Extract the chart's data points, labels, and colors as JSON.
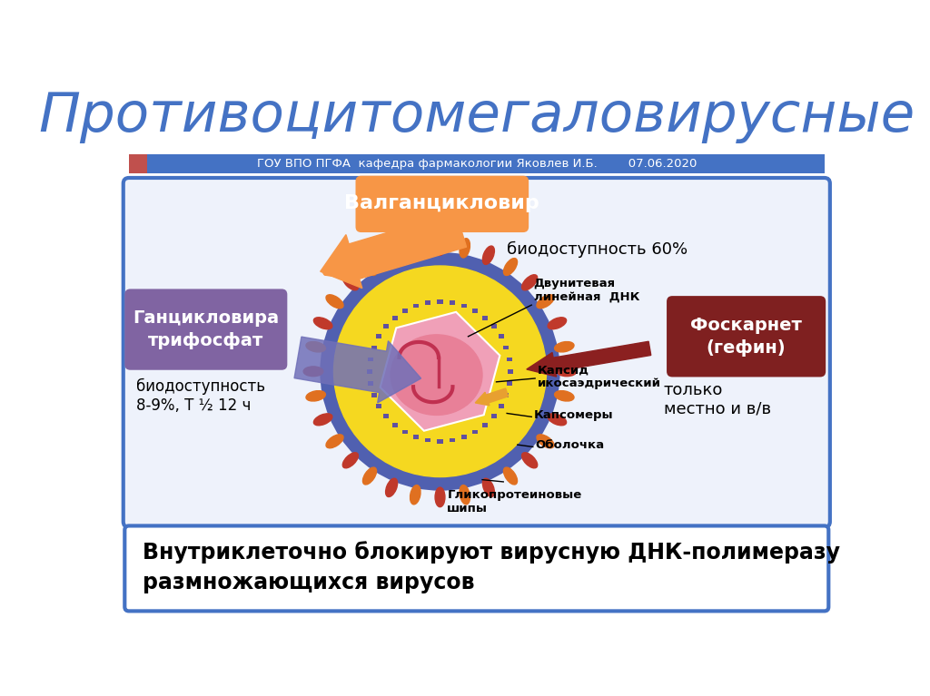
{
  "title": "Противоцитомегаловирусные",
  "subtitle": "ГОУ ВПО ПГФА  кафедра фармакологии Яковлев И.Б.        07.06.2020",
  "bg_color": "#ffffff",
  "header_bar_color": "#4472c4",
  "header_bar_left_color": "#c0504d",
  "main_box_border_color": "#4472c4",
  "bottom_box_border_color": "#4472c4",
  "main_box_bg": "#eef2fb",
  "box1_color": "#8064a2",
  "box2_color": "#f79646",
  "box3_color": "#7f2020",
  "box1_text": "Ганцикловира\nтрифосфат",
  "box2_text": "Валганцикловир",
  "box3_text": "Фоскарнет\n(гефин)",
  "label1": "биодоступность\n8-9%, T ½ 12 ч",
  "label2": "биодоступность 60%",
  "label3": "только\nместно и в/в",
  "bottom_text": "Внутриклеточно блокируют вирусную ДНК-полимеразу\nразмножающихся вирусов",
  "arrow_orange_color": "#f79646",
  "arrow_purple_color": "#7070b8",
  "arrow_darkred_color": "#8b2020",
  "arrow_smallorange_color": "#e8a030",
  "virus_outer_ring_color": "#5060b0",
  "virus_yellow_color": "#f5d820",
  "virus_spike_red": "#c0392b",
  "virus_spike_orange": "#e07020",
  "virus_capsomere_ring": "#6050a0",
  "virus_capsid_color": "#f0a0b8",
  "virus_core_color": "#e88098",
  "virus_dna_color": "#c03050",
  "bottom_text_color": "#000000"
}
